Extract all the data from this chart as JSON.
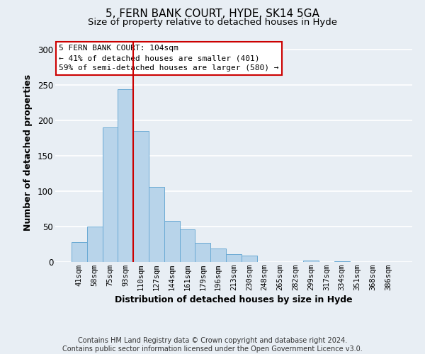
{
  "title": "5, FERN BANK COURT, HYDE, SK14 5GA",
  "subtitle": "Size of property relative to detached houses in Hyde",
  "xlabel": "Distribution of detached houses by size in Hyde",
  "ylabel": "Number of detached properties",
  "categories": [
    "41sqm",
    "58sqm",
    "75sqm",
    "93sqm",
    "110sqm",
    "127sqm",
    "144sqm",
    "161sqm",
    "179sqm",
    "196sqm",
    "213sqm",
    "230sqm",
    "248sqm",
    "265sqm",
    "282sqm",
    "299sqm",
    "317sqm",
    "334sqm",
    "351sqm",
    "368sqm",
    "386sqm"
  ],
  "values": [
    28,
    50,
    190,
    244,
    185,
    106,
    58,
    46,
    27,
    19,
    11,
    9,
    0,
    0,
    0,
    2,
    0,
    1,
    0,
    0,
    0
  ],
  "bar_color": "#b8d4ea",
  "bar_edge_color": "#6aaad4",
  "vline_index": 3.5,
  "vline_color": "#cc0000",
  "annotation_box_text": "5 FERN BANK COURT: 104sqm\n← 41% of detached houses are smaller (401)\n59% of semi-detached houses are larger (580) →",
  "annotation_box_color": "#cc0000",
  "annotation_box_facecolor": "#ffffff",
  "ylim": [
    0,
    310
  ],
  "yticks": [
    0,
    50,
    100,
    150,
    200,
    250,
    300
  ],
  "footer_text": "Contains HM Land Registry data © Crown copyright and database right 2024.\nContains public sector information licensed under the Open Government Licence v3.0.",
  "background_color": "#e8eef4",
  "grid_color": "#ffffff",
  "title_fontsize": 11,
  "subtitle_fontsize": 9.5,
  "axis_label_fontsize": 9,
  "tick_fontsize": 7.5,
  "annotation_fontsize": 8,
  "footer_fontsize": 7
}
